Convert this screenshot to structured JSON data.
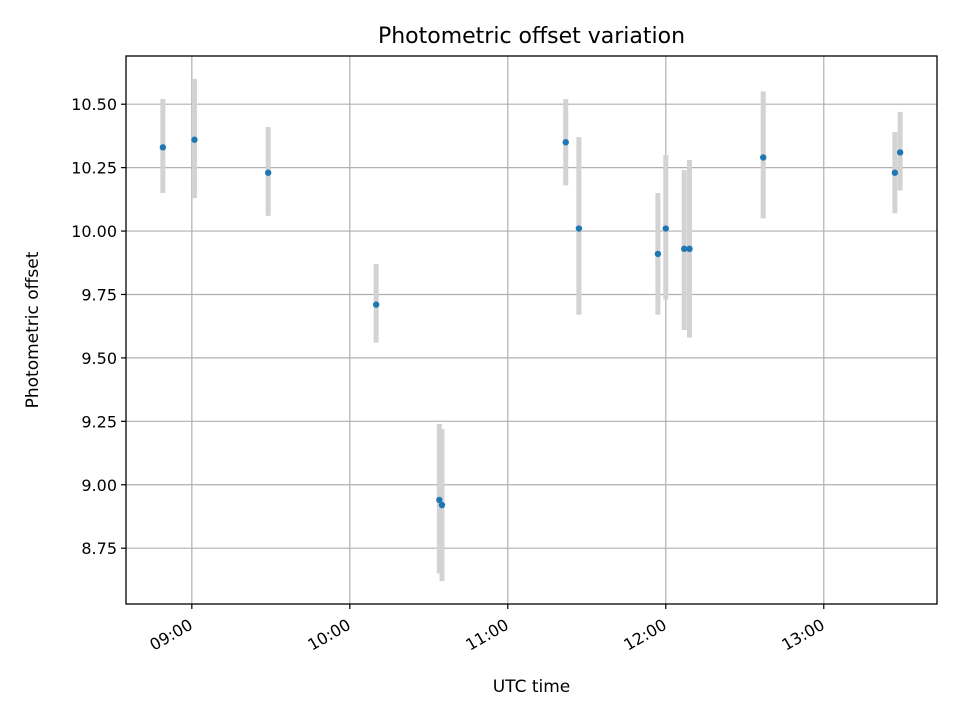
{
  "chart_data": {
    "type": "scatter",
    "title": "Photometric offset variation",
    "xlabel": "UTC time",
    "ylabel": "Photometric offset",
    "xlim": [
      "08:35",
      "13:43"
    ],
    "ylim": [
      8.53,
      10.69
    ],
    "xticks": [
      "09:00",
      "10:00",
      "11:00",
      "12:00",
      "13:00"
    ],
    "yticks": [
      "8.75",
      "9.00",
      "9.25",
      "9.50",
      "9.75",
      "10.00",
      "10.25",
      "10.50"
    ],
    "grid": true,
    "colors": {
      "marker": "#1f77b4",
      "errorbar": "#d3d3d3",
      "grid": "#b0b0b0"
    },
    "points": [
      {
        "x": "08:49",
        "y": 10.33,
        "yerr_low": 10.15,
        "yerr_high": 10.52
      },
      {
        "x": "09:01",
        "y": 10.36,
        "yerr_low": 10.13,
        "yerr_high": 10.6
      },
      {
        "x": "09:29",
        "y": 10.23,
        "yerr_low": 10.06,
        "yerr_high": 10.41
      },
      {
        "x": "10:10",
        "y": 9.71,
        "yerr_low": 9.56,
        "yerr_high": 9.87
      },
      {
        "x": "10:34",
        "y": 8.94,
        "yerr_low": 8.65,
        "yerr_high": 9.24
      },
      {
        "x": "10:35",
        "y": 8.92,
        "yerr_low": 8.62,
        "yerr_high": 9.22
      },
      {
        "x": "11:22",
        "y": 10.35,
        "yerr_low": 10.18,
        "yerr_high": 10.52
      },
      {
        "x": "11:27",
        "y": 10.01,
        "yerr_low": 9.67,
        "yerr_high": 10.37
      },
      {
        "x": "11:57",
        "y": 9.91,
        "yerr_low": 9.67,
        "yerr_high": 10.15
      },
      {
        "x": "12:00",
        "y": 10.01,
        "yerr_low": 9.73,
        "yerr_high": 10.3
      },
      {
        "x": "12:07",
        "y": 9.93,
        "yerr_low": 9.61,
        "yerr_high": 10.24
      },
      {
        "x": "12:09",
        "y": 9.93,
        "yerr_low": 9.58,
        "yerr_high": 10.28
      },
      {
        "x": "12:37",
        "y": 10.29,
        "yerr_low": 10.05,
        "yerr_high": 10.55
      },
      {
        "x": "13:27",
        "y": 10.23,
        "yerr_low": 10.07,
        "yerr_high": 10.39
      },
      {
        "x": "13:29",
        "y": 10.31,
        "yerr_low": 10.16,
        "yerr_high": 10.47
      }
    ]
  }
}
